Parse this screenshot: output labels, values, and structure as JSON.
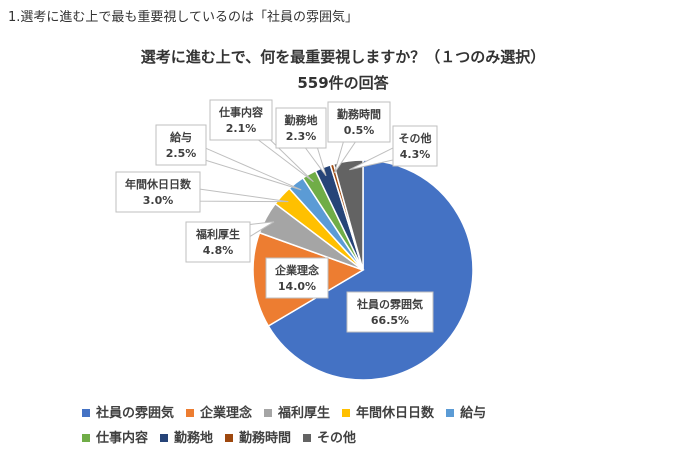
{
  "page": {
    "heading": "1.選考に進む上で最も重要視しているのは「社員の雰囲気」"
  },
  "chart_data": {
    "type": "pie",
    "title": "選考に進む上で、何を最重要視しますか？（１つのみ選択）",
    "subtitle": "559件の回答",
    "categories": [
      "社員の雰囲気",
      "企業理念",
      "福利厚生",
      "年間休日日数",
      "給与",
      "仕事内容",
      "勤務地",
      "勤務時間",
      "その他"
    ],
    "values": [
      66.5,
      14.0,
      4.8,
      3.0,
      2.5,
      2.1,
      2.3,
      0.5,
      4.3
    ],
    "value_labels": [
      "66.5%",
      "14.0%",
      "4.8%",
      "3.0%",
      "2.5%",
      "2.1%",
      "2.3%",
      "0.5%",
      "4.3%"
    ],
    "colors": [
      "#4472C4",
      "#ED7D31",
      "#A5A5A5",
      "#FFC000",
      "#5B9BD5",
      "#70AD47",
      "#264478",
      "#9E480E",
      "#636363"
    ],
    "legend_position": "bottom"
  }
}
